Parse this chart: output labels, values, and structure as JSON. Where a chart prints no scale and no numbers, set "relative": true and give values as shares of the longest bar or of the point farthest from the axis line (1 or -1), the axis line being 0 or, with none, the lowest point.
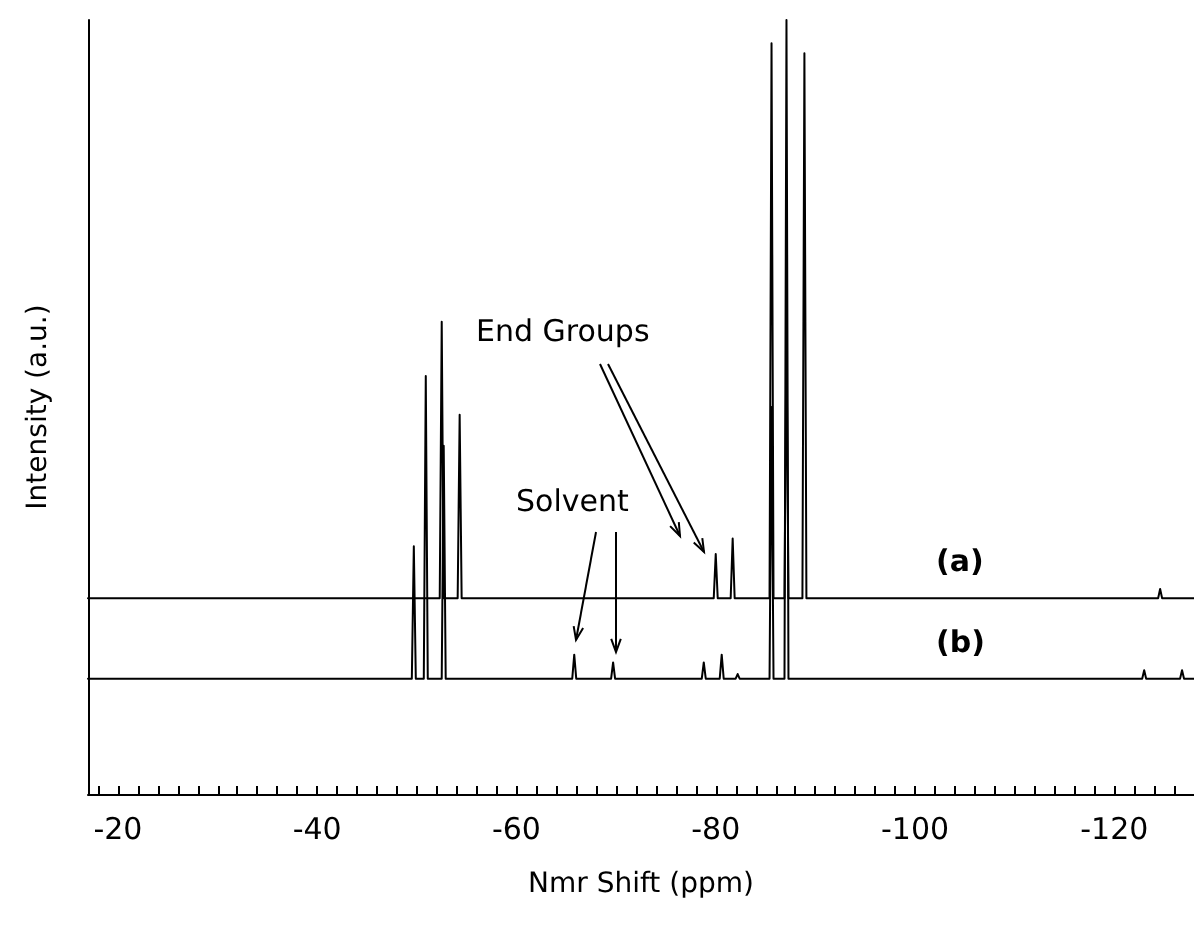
{
  "chart_data": {
    "type": "line",
    "relative": true,
    "xlabel": "Nmr Shift (ppm)",
    "ylabel": "Intensity (a.u.)",
    "annotations": [
      "End Groups",
      "Solvent"
    ],
    "xlim": [
      -17,
      -128
    ],
    "xticks": [
      {
        "value": -18,
        "label": null
      },
      -20,
      {
        "value": -22,
        "label": null
      },
      {
        "value": -24,
        "label": null
      },
      {
        "value": -26,
        "label": null
      },
      {
        "value": -28,
        "label": null
      },
      {
        "value": -30,
        "label": null
      },
      {
        "value": -32,
        "label": null
      },
      {
        "value": -34,
        "label": null
      },
      {
        "value": -36,
        "label": null
      },
      {
        "value": -38,
        "label": null
      },
      -40,
      {
        "value": -42,
        "label": null
      },
      {
        "value": -44,
        "label": null
      },
      {
        "value": -46,
        "label": null
      },
      {
        "value": -48,
        "label": null
      },
      {
        "value": -50,
        "label": null
      },
      {
        "value": -52,
        "label": null
      },
      {
        "value": -54,
        "label": null
      },
      {
        "value": -56,
        "label": null
      },
      {
        "value": -58,
        "label": null
      },
      -60,
      {
        "value": -62,
        "label": null
      },
      {
        "value": -64,
        "label": null
      },
      {
        "value": -66,
        "label": null
      },
      {
        "value": -68,
        "label": null
      },
      {
        "value": -70,
        "label": null
      },
      {
        "value": -72,
        "label": null
      },
      {
        "value": -74,
        "label": null
      },
      {
        "value": -76,
        "label": null
      },
      {
        "value": -78,
        "label": null
      },
      -80,
      {
        "value": -82,
        "label": null
      },
      {
        "value": -84,
        "label": null
      },
      {
        "value": -86,
        "label": null
      },
      {
        "value": -88,
        "label": null
      },
      {
        "value": -90,
        "label": null
      },
      {
        "value": -92,
        "label": null
      },
      {
        "value": -94,
        "label": null
      },
      {
        "value": -96,
        "label": null
      },
      {
        "value": -98,
        "label": null
      },
      -100,
      {
        "value": -102,
        "label": null
      },
      {
        "value": -104,
        "label": null
      },
      {
        "value": -106,
        "label": null
      },
      {
        "value": -108,
        "label": null
      },
      {
        "value": -110,
        "label": null
      },
      {
        "value": -112,
        "label": null
      },
      {
        "value": -114,
        "label": null
      },
      {
        "value": -116,
        "label": null
      },
      {
        "value": -118,
        "label": null
      },
      -120,
      {
        "value": -122,
        "label": null
      },
      {
        "value": -124,
        "label": null
      },
      {
        "value": -126,
        "label": null
      }
    ],
    "grid": false,
    "legend": false,
    "marker": "none",
    "line_style": "solid",
    "series": [
      {
        "name": "(a)",
        "color": "#000000",
        "x": [
          -17,
          -52.3,
          -52.5,
          -52.7,
          -54.1,
          -54.3,
          -54.5,
          -79.8,
          -80.0,
          -80.2,
          -81.5,
          -81.7,
          -81.9,
          -85.4,
          -85.6,
          -85.8,
          -86.9,
          -87.1,
          -87.3,
          -88.7,
          -88.9,
          -89.1,
          -124.4,
          -124.6,
          -124.8,
          -128
        ],
        "values": [
          0.253,
          0.253,
          0.61,
          0.253,
          0.253,
          0.49,
          0.253,
          0.253,
          0.31,
          0.253,
          0.253,
          0.33,
          0.253,
          0.253,
          0.97,
          0.253,
          0.253,
          0.6,
          0.253,
          0.253,
          0.957,
          0.253,
          0.253,
          0.265,
          0.253,
          0.253
        ]
      },
      {
        "name": "(b)",
        "color": "#000000",
        "x": [
          -17,
          -49.5,
          -49.7,
          -49.9,
          -50.7,
          -50.9,
          -51.1,
          -52.5,
          -52.7,
          -52.9,
          -65.6,
          -65.8,
          -66.0,
          -69.5,
          -69.7,
          -69.9,
          -78.6,
          -78.8,
          -79.0,
          -80.4,
          -80.6,
          -80.8,
          -82.0,
          -82.2,
          -82.4,
          -85.4,
          -85.6,
          -85.8,
          -86.9,
          -87.1,
          -87.3,
          -122.8,
          -123.0,
          -123.2,
          -126.6,
          -126.8,
          -127.0,
          -128
        ],
        "values": [
          0.149,
          0.149,
          0.32,
          0.149,
          0.149,
          0.54,
          0.149,
          0.149,
          0.45,
          0.149,
          0.149,
          0.18,
          0.149,
          0.149,
          0.17,
          0.149,
          0.149,
          0.17,
          0.149,
          0.149,
          0.18,
          0.149,
          0.149,
          0.155,
          0.149,
          0.149,
          0.5,
          0.149,
          0.149,
          1,
          0.149,
          0.149,
          0.16,
          0.149,
          0.149,
          0.16,
          0.149,
          0.149
        ]
      }
    ]
  }
}
